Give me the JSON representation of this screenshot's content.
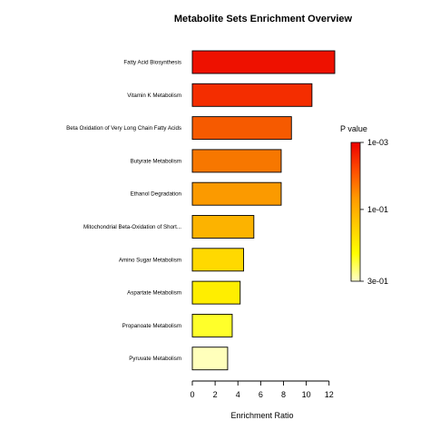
{
  "chart_data": {
    "type": "bar",
    "orientation": "horizontal",
    "title": "Metabolite Sets Enrichment Overview",
    "xlabel": "Enrichment Ratio",
    "ylabel": "",
    "xlim": [
      0,
      12.5
    ],
    "xticks": [
      0,
      2,
      4,
      6,
      8,
      10,
      12
    ],
    "grid": false,
    "categories": [
      "Fatty Acid Biosynthesis",
      "Vitamin K Metabolism",
      "Beta Oxidation of Very Long Chain Fatty Acids",
      "Butyrate Metabolism",
      "Ethanol Degradation",
      "Mitochondrial Beta-Oxidation of Short...",
      "Amino Sugar Metabolism",
      "Aspartate Metabolism",
      "Propanoate Metabolism",
      "Pyruvate Metabolism"
    ],
    "values": [
      12.5,
      10.5,
      8.7,
      7.8,
      7.8,
      5.4,
      4.5,
      4.2,
      3.5,
      3.1
    ],
    "bar_colors": [
      "#ee1100",
      "#f42d00",
      "#f65a00",
      "#f77700",
      "#fb9a00",
      "#fcb300",
      "#ffd900",
      "#ffee00",
      "#ffff2a",
      "#ffffbb"
    ],
    "legend": {
      "title": "P value",
      "placement": "right",
      "tick_labels": [
        "1e-03",
        "1e-01",
        "3e-01"
      ],
      "gradient_colors": [
        "#ee0000",
        "#ff4d00",
        "#ff9900",
        "#ffcc00",
        "#ffff00",
        "#ffffcc"
      ]
    }
  }
}
